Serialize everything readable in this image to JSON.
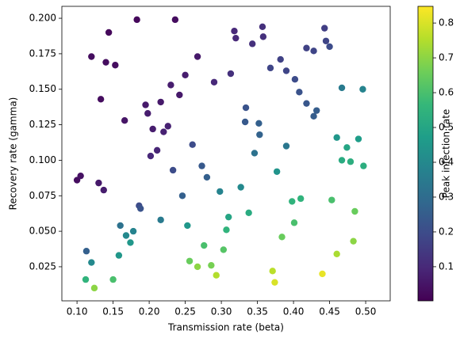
{
  "chart_data": {
    "type": "scatter",
    "xlabel": "Transmission rate (beta)",
    "ylabel": "Recovery rate (gamma)",
    "xlim": [
      0.079,
      0.534
    ],
    "ylim": [
      0.001,
      0.2084
    ],
    "xticks": [
      {
        "value": 0.1,
        "label": "0.10"
      },
      {
        "value": 0.15,
        "label": "0.15"
      },
      {
        "value": 0.2,
        "label": "0.20"
      },
      {
        "value": 0.25,
        "label": "0.25"
      },
      {
        "value": 0.3,
        "label": "0.30"
      },
      {
        "value": 0.35,
        "label": "0.35"
      },
      {
        "value": 0.4,
        "label": "0.40"
      },
      {
        "value": 0.45,
        "label": "0.45"
      },
      {
        "value": 0.5,
        "label": "0.50"
      }
    ],
    "yticks": [
      {
        "value": 0.025,
        "label": "0.025"
      },
      {
        "value": 0.05,
        "label": "0.050"
      },
      {
        "value": 0.075,
        "label": "0.075"
      },
      {
        "value": 0.1,
        "label": "0.100"
      },
      {
        "value": 0.125,
        "label": "0.125"
      },
      {
        "value": 0.15,
        "label": "0.150"
      },
      {
        "value": 0.175,
        "label": "0.175"
      },
      {
        "value": 0.2,
        "label": "0.200"
      }
    ],
    "colormap": "viridis",
    "colorbar": {
      "label": "Peak infection rate",
      "lim": [
        0.002,
        0.848
      ],
      "ticks": [
        0.1,
        0.2,
        0.3,
        0.4,
        0.5,
        0.6,
        0.7,
        0.8
      ]
    },
    "x": [
      0.183,
      0.236,
      0.144,
      0.12,
      0.14,
      0.153,
      0.318,
      0.32,
      0.357,
      0.358,
      0.343,
      0.267,
      0.25,
      0.23,
      0.242,
      0.29,
      0.313,
      0.133,
      0.195,
      0.198,
      0.216,
      0.166,
      0.205,
      0.22,
      0.226,
      0.211,
      0.202,
      0.1,
      0.105,
      0.13,
      0.137,
      0.382,
      0.39,
      0.402,
      0.418,
      0.428,
      0.443,
      0.445,
      0.45,
      0.368,
      0.408,
      0.418,
      0.428,
      0.432,
      0.334,
      0.333,
      0.352,
      0.353,
      0.26,
      0.233,
      0.273,
      0.28,
      0.246,
      0.186,
      0.188,
      0.346,
      0.39,
      0.113,
      0.16,
      0.216,
      0.178,
      0.168,
      0.467,
      0.496,
      0.46,
      0.49,
      0.474,
      0.467,
      0.479,
      0.497,
      0.298,
      0.327,
      0.377,
      0.31,
      0.338,
      0.307,
      0.253,
      0.174,
      0.158,
      0.12,
      0.398,
      0.41,
      0.401,
      0.384,
      0.453,
      0.485,
      0.276,
      0.303,
      0.256,
      0.286,
      0.483,
      0.46,
      0.112,
      0.15,
      0.124,
      0.267,
      0.293,
      0.371,
      0.374,
      0.44
    ],
    "y": [
      0.199,
      0.199,
      0.19,
      0.173,
      0.169,
      0.167,
      0.191,
      0.186,
      0.194,
      0.187,
      0.182,
      0.173,
      0.16,
      0.153,
      0.146,
      0.155,
      0.161,
      0.143,
      0.139,
      0.133,
      0.141,
      0.128,
      0.122,
      0.12,
      0.124,
      0.107,
      0.103,
      0.086,
      0.089,
      0.084,
      0.079,
      0.171,
      0.163,
      0.157,
      0.179,
      0.177,
      0.193,
      0.184,
      0.18,
      0.165,
      0.148,
      0.14,
      0.131,
      0.135,
      0.137,
      0.127,
      0.126,
      0.118,
      0.111,
      0.093,
      0.096,
      0.088,
      0.075,
      0.068,
      0.066,
      0.105,
      0.11,
      0.036,
      0.054,
      0.058,
      0.05,
      0.047,
      0.151,
      0.15,
      0.116,
      0.115,
      0.109,
      0.1,
      0.099,
      0.096,
      0.078,
      0.081,
      0.092,
      0.06,
      0.063,
      0.051,
      0.054,
      0.042,
      0.033,
      0.028,
      0.071,
      0.073,
      0.056,
      0.046,
      0.072,
      0.064,
      0.04,
      0.037,
      0.029,
      0.026,
      0.043,
      0.034,
      0.016,
      0.016,
      0.01,
      0.025,
      0.019,
      0.022,
      0.014,
      0.02
    ],
    "c": [
      0.02,
      0.03,
      0.02,
      0.03,
      0.03,
      0.03,
      0.1,
      0.1,
      0.12,
      0.12,
      0.12,
      0.06,
      0.07,
      0.07,
      0.06,
      0.1,
      0.12,
      0.03,
      0.06,
      0.07,
      0.06,
      0.05,
      0.07,
      0.08,
      0.08,
      0.09,
      0.1,
      0.03,
      0.04,
      0.06,
      0.07,
      0.17,
      0.18,
      0.2,
      0.17,
      0.18,
      0.16,
      0.18,
      0.2,
      0.18,
      0.22,
      0.23,
      0.25,
      0.25,
      0.22,
      0.24,
      0.26,
      0.27,
      0.2,
      0.2,
      0.24,
      0.26,
      0.26,
      0.2,
      0.22,
      0.32,
      0.34,
      0.26,
      0.32,
      0.35,
      0.38,
      0.4,
      0.35,
      0.38,
      0.45,
      0.47,
      0.5,
      0.52,
      0.53,
      0.53,
      0.38,
      0.4,
      0.44,
      0.5,
      0.52,
      0.55,
      0.45,
      0.45,
      0.45,
      0.4,
      0.55,
      0.55,
      0.6,
      0.65,
      0.6,
      0.65,
      0.6,
      0.62,
      0.65,
      0.67,
      0.7,
      0.74,
      0.55,
      0.6,
      0.7,
      0.7,
      0.75,
      0.76,
      0.8,
      0.82
    ]
  }
}
